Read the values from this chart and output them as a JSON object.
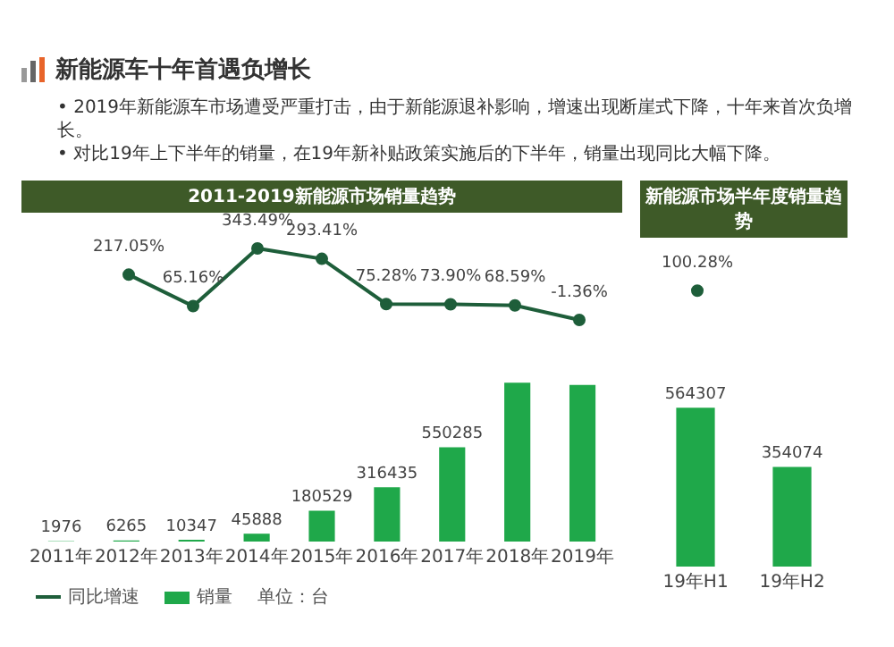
{
  "chart_data": [
    {
      "type": "line",
      "title": "2011-2019新能源市场销量趋势",
      "annotations": [
        "新能源车十年首遇负增长",
        "• 2019年新能源车市场遭受严重打击，由于新能源退补影响，增速出现断崖式下降，十年来首次负增长。",
        "• 对比19年上下半年的销量，在19年新补贴政策实施后的下半年，销量出现同比大幅下降。",
        "单位：台"
      ],
      "categories": [
        null,
        null,
        null,
        null,
        null,
        null,
        null,
        null,
        null
      ],
      "series": [
        {
          "name": "同比增速",
          "color": "#1e5e3a",
          "values": [
            null,
            217.05,
            65.16,
            343.49,
            293.41,
            75.28,
            73.9,
            68.59,
            -1.36
          ],
          "value_labels": [
            null,
            "217.05%",
            "65.16%",
            "343.49%",
            "293.41%",
            "75.28%",
            "73.90%",
            "68.59%",
            "-1.36%"
          ]
        }
      ],
      "marker": "circle",
      "legend": "bottom left",
      "tick_labels": false,
      "grid": false
    },
    {
      "type": "bar",
      "categories": [
        "2011年",
        "2012年",
        "2013年",
        "2014年",
        "2015年",
        "2016年",
        "2017年",
        "2018年",
        "2019年"
      ],
      "series": [
        {
          "name": "销量",
          "color": "#1fa84a",
          "values": [
            1976,
            6265,
            10347,
            45888,
            180529,
            316435,
            550285,
            927721,
            915067
          ],
          "value_labels": [
            "1976",
            "6265",
            "10347",
            "45888",
            "180529",
            "316435",
            "550285",
            null,
            null
          ]
        }
      ],
      "legend": "bottom left",
      "tick_labels": "x",
      "grid": false
    },
    {
      "type": "other",
      "title": "新能源市场半年度销量趋势",
      "categories": [
        null,
        null
      ],
      "series": [
        {
          "color": "#1e5e3a",
          "values": [
            100.28,
            null
          ],
          "value_labels": [
            "100.28%",
            null
          ]
        }
      ]
    },
    {
      "type": "bar",
      "categories": [
        "19年H1",
        "19年H2"
      ],
      "series": [
        {
          "color": "#1fa84a",
          "values": [
            564307,
            354074
          ],
          "value_labels": [
            "564307",
            "354074"
          ]
        }
      ],
      "tick_labels": "x",
      "grid": false
    }
  ]
}
